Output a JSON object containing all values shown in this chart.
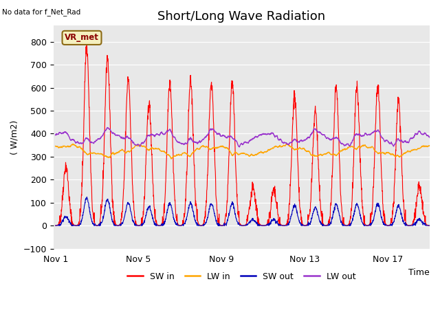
{
  "title": "Short/Long Wave Radiation",
  "top_left_text": "No data for f_Net_Rad",
  "station_label": "VR_met",
  "ylabel": "( W/m2)",
  "xlabel": "Time",
  "ylim": [
    -100,
    870
  ],
  "yticks": [
    -100,
    0,
    100,
    200,
    300,
    400,
    500,
    600,
    700,
    800
  ],
  "bg_color": "#e8e8e8",
  "fig_color": "#ffffff",
  "grid_color": "#ffffff",
  "legend_labels": [
    "SW in",
    "LW in",
    "SW out",
    "LW out"
  ],
  "legend_colors": [
    "#ff0000",
    "#ffa500",
    "#0000bb",
    "#9933cc"
  ],
  "n_days": 18,
  "sw_peaks": [
    260,
    780,
    730,
    640,
    530,
    630,
    630,
    620,
    620,
    160,
    150,
    560,
    500,
    600,
    600,
    600,
    550,
    170
  ],
  "sw_out_scale": 0.155,
  "lw_in_base": 330,
  "lw_out_base": 375,
  "title_fontsize": 13,
  "label_fontsize": 9,
  "tick_fontsize": 9
}
